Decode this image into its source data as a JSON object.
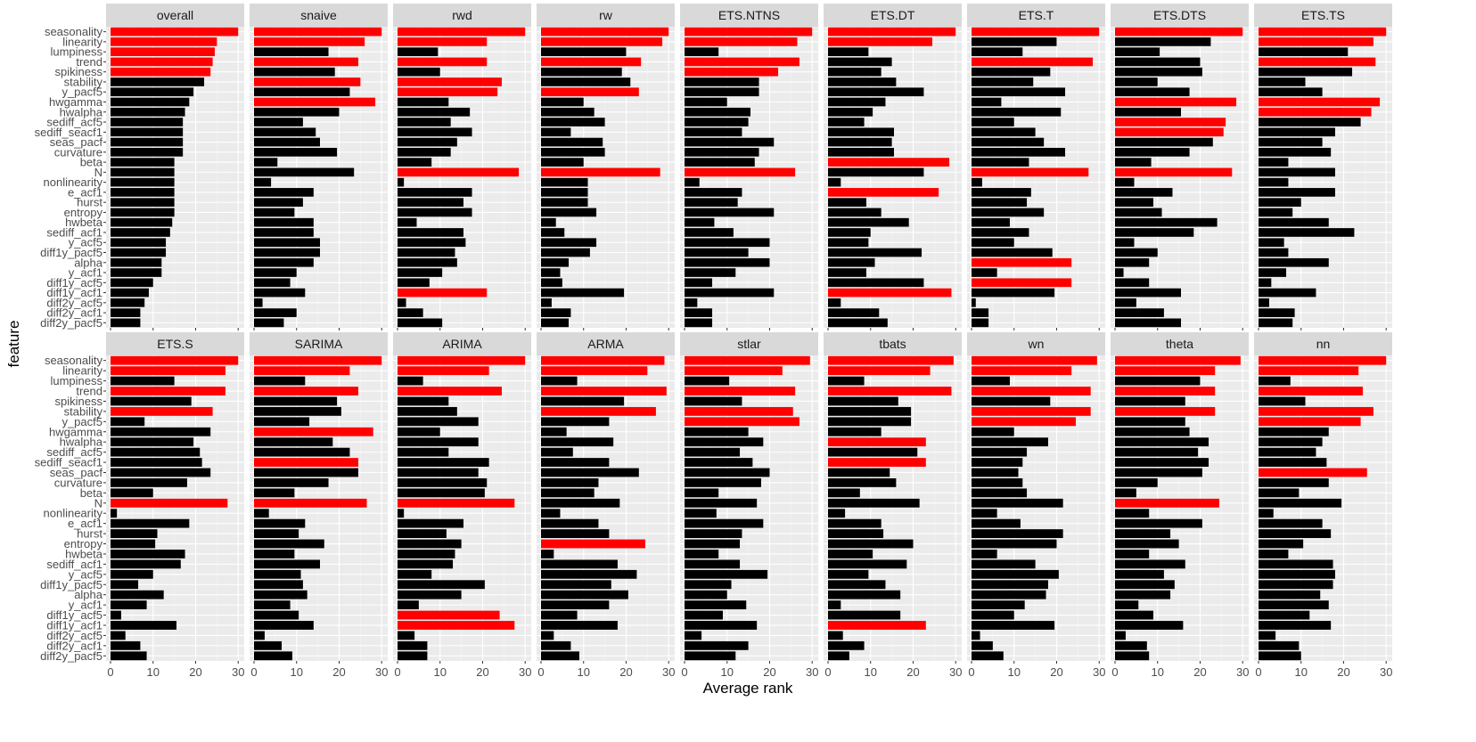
{
  "chart_data": {
    "type": "bar",
    "orientation": "horizontal",
    "xlabel": "Average rank",
    "ylabel": "feature",
    "xlim": [
      0,
      31
    ],
    "x_ticks": [
      0,
      10,
      20,
      30
    ],
    "grid": true,
    "colors": {
      "top_feature": "#ff0000",
      "other": "#000000",
      "panel": "#ebebeb",
      "strip": "#d9d9d9"
    },
    "features": [
      "seasonality",
      "linearity",
      "lumpiness",
      "trend",
      "spikiness",
      "stability",
      "y_pacf5",
      "hwgamma",
      "hwalpha",
      "sediff_acf5",
      "sediff_seacf1",
      "seas_pacf",
      "curvature",
      "beta",
      "N",
      "nonlinearity",
      "e_acf1",
      "hurst",
      "entropy",
      "hwbeta",
      "sediff_acf1",
      "y_acf5",
      "diff1y_pacf5",
      "alpha",
      "y_acf1",
      "diff1y_acf5",
      "diff1y_acf1",
      "diff2y_acf5",
      "diff2y_acf1",
      "diff2y_pacf5"
    ],
    "panels": [
      {
        "name": "overall",
        "values": [
          30,
          25,
          24.5,
          24,
          23.5,
          22,
          19.5,
          18.5,
          17.5,
          17,
          17,
          17,
          17,
          15,
          15,
          15,
          15,
          15,
          15,
          14.5,
          14,
          13,
          13,
          12,
          12,
          10,
          9,
          8,
          7,
          7
        ],
        "highlight": [
          0,
          1,
          2,
          3,
          4
        ]
      },
      {
        "name": "snaive",
        "values": [
          30,
          26,
          17.5,
          24.5,
          19,
          25,
          22.5,
          28.5,
          20,
          11.5,
          14.5,
          15.5,
          19.5,
          5.5,
          23.5,
          4,
          14,
          11.5,
          9.5,
          14,
          14,
          15.5,
          15.5,
          14,
          10,
          8.5,
          12,
          2,
          10,
          7
        ],
        "highlight": [
          0,
          1,
          3,
          5,
          7
        ]
      },
      {
        "name": "rwd",
        "values": [
          30,
          21,
          9.5,
          21,
          10,
          24.5,
          23.5,
          12,
          17,
          12.5,
          17.5,
          14,
          12.5,
          8,
          28.5,
          1.5,
          17.5,
          15.5,
          17.5,
          4.5,
          15.5,
          16,
          13.5,
          14,
          10.5,
          7.5,
          21,
          2,
          6,
          10.5
        ],
        "highlight": [
          0,
          1,
          3,
          5,
          6,
          14,
          26
        ]
      },
      {
        "name": "rw",
        "values": [
          30,
          28.5,
          20,
          23.5,
          19,
          21,
          23,
          10,
          12.5,
          15,
          7,
          14.5,
          15,
          10,
          28,
          11,
          11,
          11,
          13,
          3.5,
          5.5,
          13,
          11.5,
          6.5,
          4.5,
          5,
          19.5,
          2.5,
          7,
          6.5
        ],
        "highlight": [
          0,
          1,
          3,
          6,
          14
        ]
      },
      {
        "name": "ETS.NTNS",
        "values": [
          30,
          26.5,
          8,
          27,
          22,
          17.5,
          17.5,
          10,
          15.5,
          15,
          13.5,
          21,
          17.5,
          16.5,
          26,
          3.5,
          13.5,
          12.5,
          21,
          7,
          11.5,
          20,
          15,
          20,
          12,
          6.5,
          21,
          3,
          6.5,
          6.5
        ],
        "highlight": [
          0,
          1,
          3,
          4,
          14
        ]
      },
      {
        "name": "ETS.DT",
        "values": [
          30,
          24.5,
          9.5,
          15,
          12.5,
          16,
          22.5,
          13.5,
          10.5,
          8.5,
          15.5,
          15,
          15.5,
          28.5,
          22.5,
          3,
          26,
          9,
          12.5,
          19,
          10,
          9.5,
          22,
          11,
          9,
          22.5,
          29,
          3,
          12,
          14
        ],
        "highlight": [
          0,
          1,
          13,
          16,
          26
        ]
      },
      {
        "name": "ETS.T",
        "values": [
          30,
          20,
          12,
          28.5,
          18.5,
          14.5,
          22,
          7,
          21,
          10,
          15,
          17,
          22,
          13.5,
          27.5,
          2.5,
          14,
          13,
          17,
          9,
          13.5,
          10,
          19,
          23.5,
          6,
          23.5,
          19.5,
          1,
          4,
          4
        ],
        "highlight": [
          0,
          3,
          14,
          23,
          25
        ]
      },
      {
        "name": "ETS.DTS",
        "values": [
          30,
          22.5,
          10.5,
          20,
          20.5,
          10,
          17.5,
          28.5,
          15.5,
          26,
          25.5,
          23,
          17.5,
          8.5,
          27.5,
          4.5,
          13.5,
          9,
          11,
          24,
          18.5,
          4.5,
          10,
          8,
          2,
          8,
          15.5,
          5,
          11.5,
          15.5
        ],
        "highlight": [
          0,
          7,
          9,
          10,
          14
        ]
      },
      {
        "name": "ETS.TS",
        "values": [
          30,
          27,
          21,
          27.5,
          22,
          11,
          15,
          28.5,
          26.5,
          24,
          18,
          15,
          17,
          7,
          18,
          7,
          18,
          10,
          8,
          16.5,
          22.5,
          6,
          7,
          16.5,
          6.5,
          3,
          13.5,
          2.5,
          8.5,
          8
        ],
        "highlight": [
          0,
          1,
          3,
          7,
          8
        ]
      },
      {
        "name": "ETS.S",
        "values": [
          30,
          27,
          15,
          27,
          19,
          24,
          8,
          23.5,
          19.5,
          21,
          21.5,
          23.5,
          18,
          10,
          27.5,
          1.5,
          18.5,
          11,
          10.5,
          17.5,
          16.5,
          10,
          6.5,
          12.5,
          8.5,
          2.5,
          15.5,
          3.5,
          7,
          8.5
        ],
        "highlight": [
          0,
          1,
          3,
          5,
          14
        ]
      },
      {
        "name": "SARIMA",
        "values": [
          30,
          22.5,
          12,
          24.5,
          19.5,
          20.5,
          13,
          28,
          18.5,
          22.5,
          24.5,
          24.5,
          17.5,
          9.5,
          26.5,
          3.5,
          12,
          10.5,
          16.5,
          9.5,
          15.5,
          11,
          11.5,
          12.5,
          8.5,
          10.5,
          14,
          2.5,
          6.5,
          9
        ],
        "highlight": [
          0,
          1,
          3,
          7,
          10,
          14
        ]
      },
      {
        "name": "ARIMA",
        "values": [
          30,
          21.5,
          6,
          24.5,
          12,
          14,
          19,
          10,
          19,
          12,
          21.5,
          19,
          21,
          20.5,
          27.5,
          1.5,
          15.5,
          11.5,
          15,
          13.5,
          13,
          8,
          20.5,
          15,
          5,
          24,
          27.5,
          4,
          7,
          7
        ],
        "highlight": [
          0,
          1,
          3,
          14,
          25,
          26
        ]
      },
      {
        "name": "ARMA",
        "values": [
          29,
          25,
          8.5,
          29.5,
          19.5,
          27,
          16,
          6,
          17,
          7.5,
          16,
          23,
          13.5,
          12.5,
          18.5,
          4.5,
          13.5,
          16,
          24.5,
          3,
          18,
          22.5,
          16.5,
          20.5,
          16,
          8.5,
          18,
          3,
          7,
          9
        ],
        "highlight": [
          0,
          1,
          3,
          5,
          18
        ]
      },
      {
        "name": "stlar",
        "values": [
          29.5,
          23,
          10.5,
          26,
          13.5,
          25.5,
          27,
          15,
          18.5,
          13,
          16,
          20,
          18,
          8,
          17,
          7.5,
          18.5,
          13.5,
          13,
          8,
          13,
          19.5,
          11,
          10,
          14.5,
          9,
          17,
          4,
          15,
          12
        ],
        "highlight": [
          0,
          1,
          3,
          5,
          6
        ]
      },
      {
        "name": "tbats",
        "values": [
          29.5,
          24,
          8.5,
          29,
          16.5,
          19.5,
          19.5,
          12.5,
          23,
          21,
          23,
          14.5,
          16,
          7.5,
          21.5,
          4,
          12.5,
          13,
          20,
          10.5,
          18.5,
          9.5,
          13.5,
          17,
          3,
          17,
          23,
          3.5,
          8.5,
          5
        ],
        "highlight": [
          0,
          1,
          3,
          8,
          10,
          26
        ]
      },
      {
        "name": "wn",
        "values": [
          29.5,
          23.5,
          9,
          28,
          18.5,
          28,
          24.5,
          10,
          18,
          13,
          12,
          11,
          12,
          13,
          21.5,
          6,
          11.5,
          21.5,
          20,
          6,
          15,
          20.5,
          18,
          17.5,
          12.5,
          10,
          19.5,
          2,
          5,
          7.5
        ],
        "highlight": [
          0,
          1,
          3,
          5,
          6
        ]
      },
      {
        "name": "theta",
        "values": [
          29.5,
          23.5,
          20,
          23.5,
          16.5,
          23.5,
          16.5,
          17.5,
          22,
          19.5,
          22,
          20.5,
          10,
          5,
          24.5,
          8,
          20.5,
          13,
          15,
          8,
          16.5,
          11.5,
          14,
          13,
          5.5,
          9,
          16,
          2.5,
          7.5,
          8
        ],
        "highlight": [
          0,
          1,
          3,
          5,
          14
        ]
      },
      {
        "name": "nn",
        "values": [
          30,
          23.5,
          7.5,
          24.5,
          11,
          27,
          24,
          16.5,
          15,
          13.5,
          16,
          25.5,
          16.5,
          9.5,
          19.5,
          3.5,
          15,
          17,
          10.5,
          7,
          17.5,
          18,
          17.5,
          14.5,
          16.5,
          12,
          17,
          4,
          9.5,
          10
        ],
        "highlight": [
          0,
          1,
          3,
          5,
          6,
          11
        ]
      }
    ]
  }
}
